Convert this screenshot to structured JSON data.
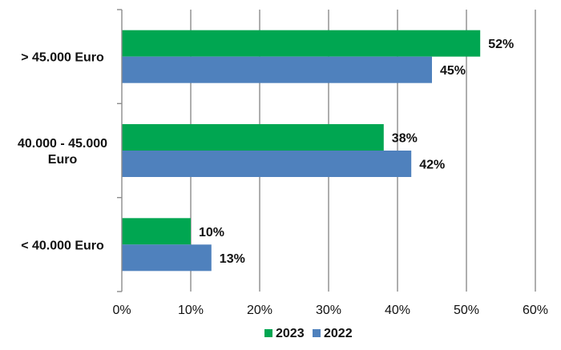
{
  "chart_data": {
    "type": "bar",
    "orientation": "horizontal",
    "categories": [
      "> 45.000 Euro",
      "40.000 - 45.000 Euro",
      "< 40.000 Euro"
    ],
    "category_lines": [
      [
        "> 45.000 Euro"
      ],
      [
        "40.000 - 45.000",
        "Euro"
      ],
      [
        "< 40.000 Euro"
      ]
    ],
    "series": [
      {
        "name": "2023",
        "values": [
          52,
          38,
          10
        ],
        "labels": [
          "52%",
          "38%",
          "10%"
        ],
        "color": "#00a651"
      },
      {
        "name": "2022",
        "values": [
          45,
          42,
          13
        ],
        "labels": [
          "45%",
          "42%",
          "13%"
        ],
        "color": "#4f81bd"
      }
    ],
    "xlim": [
      0,
      60
    ],
    "x_ticks": [
      "0%",
      "10%",
      "20%",
      "30%",
      "40%",
      "50%",
      "60%"
    ],
    "grid": true,
    "legend_position": "bottom",
    "title": "",
    "xlabel": "",
    "ylabel": ""
  }
}
